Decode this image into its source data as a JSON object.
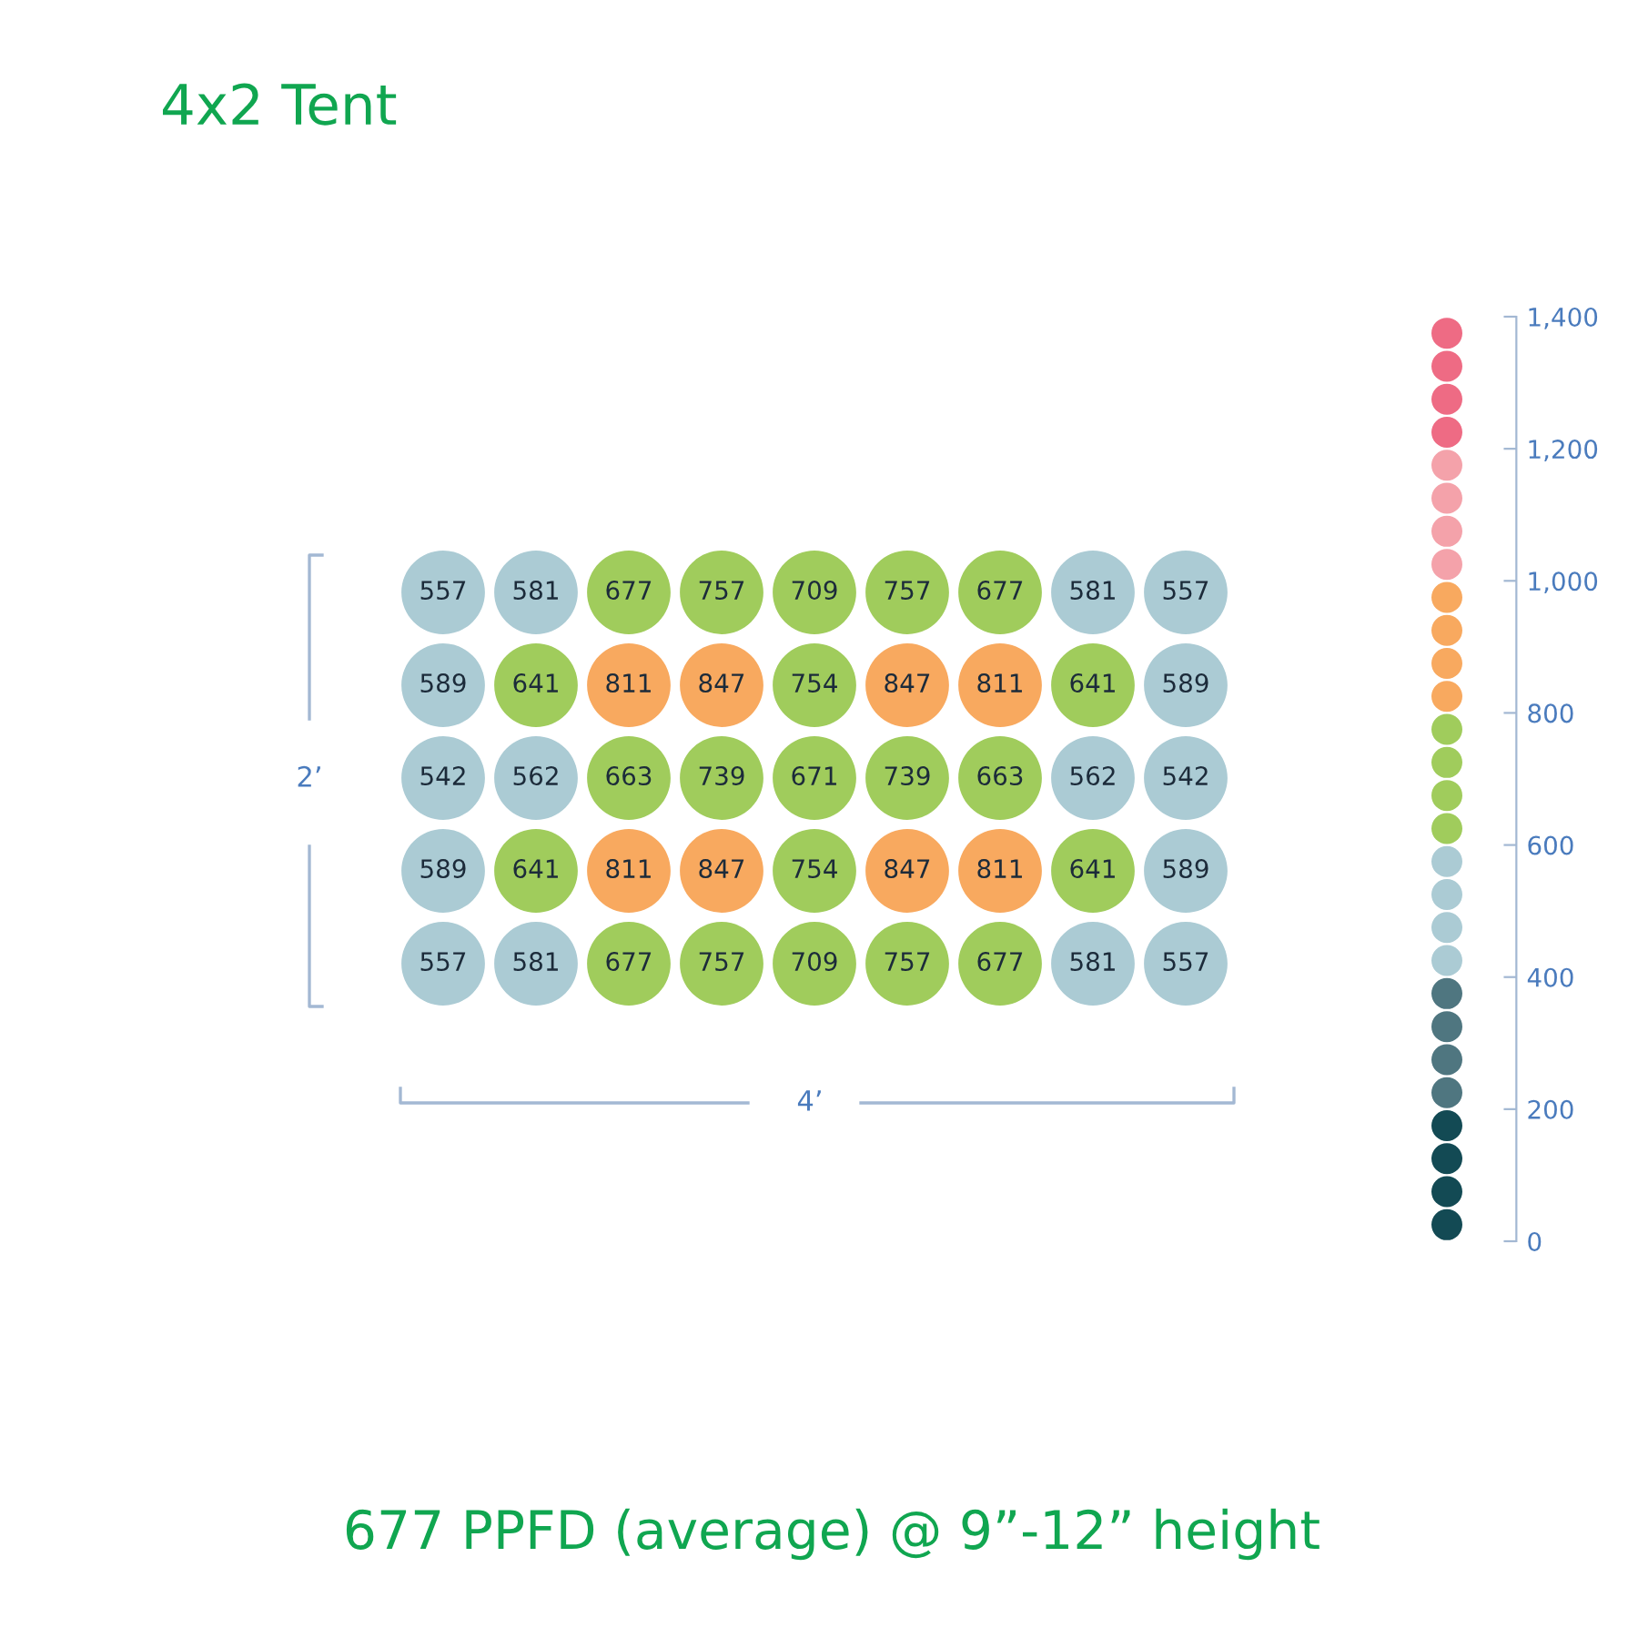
{
  "chart_data": {
    "type": "heatmap",
    "title": "4x2 Tent",
    "categories": [
      null,
      null,
      null,
      null,
      null,
      null,
      null,
      null,
      null
    ],
    "y_categories": [
      null,
      null,
      null,
      null,
      null
    ],
    "cells": [
      [
        557,
        581,
        677,
        757,
        709,
        757,
        677,
        581,
        557
      ],
      [
        589,
        641,
        811,
        847,
        754,
        847,
        811,
        641,
        589
      ],
      [
        542,
        562,
        663,
        739,
        671,
        739,
        663,
        562,
        542
      ],
      [
        589,
        641,
        811,
        847,
        754,
        847,
        811,
        641,
        589
      ],
      [
        557,
        581,
        677,
        757,
        709,
        757,
        677,
        581,
        557
      ]
    ],
    "data_labels": true,
    "clim": [
      0,
      1400
    ],
    "cticks": [
      0,
      200,
      400,
      600,
      800,
      {
        "value": 1000,
        "label": "1,000"
      },
      {
        "value": 1200,
        "label": "1,200"
      },
      {
        "value": 1400,
        "label": "1,400"
      }
    ],
    "annotations": [
      "2’",
      "4’",
      "677 PPFD (average) @ 9”-12” height"
    ]
  }
}
